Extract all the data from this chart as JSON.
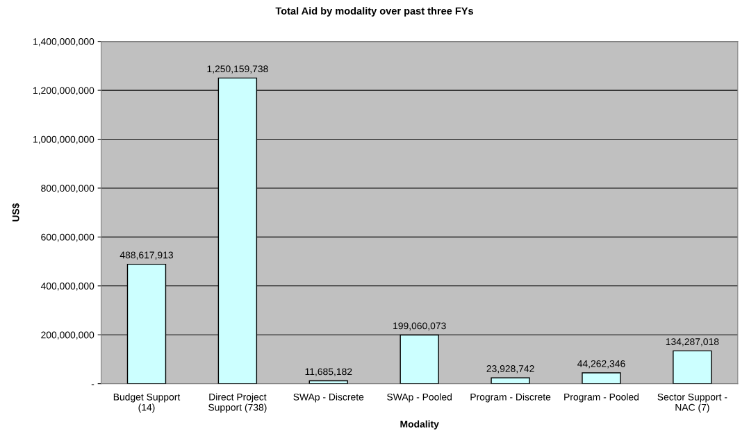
{
  "chart_data": {
    "type": "bar",
    "title": "Total Aid by modality over past three FYs",
    "xlabel": "Modality",
    "ylabel": "US$",
    "categories": [
      "Budget Support\n(14)",
      "Direct Project\nSupport (738)",
      "SWAp - Discrete",
      "SWAp - Pooled",
      "Program - Discrete",
      "Program - Pooled",
      "Sector Support -\nNAC (7)"
    ],
    "values": [
      488617913,
      1250159738,
      11685182,
      199060073,
      23928742,
      44262346,
      134287018
    ],
    "value_labels": [
      "488,617,913",
      "1,250,159,738",
      "11,685,182",
      "199,060,073",
      "23,928,742",
      "44,262,346",
      "134,287,018"
    ],
    "color": "#ccffff",
    "ylim": [
      0,
      1400000000
    ],
    "yticks": [
      {
        "value": 0,
        "label": "-"
      },
      {
        "value": 200000000,
        "label": "200,000,000"
      },
      {
        "value": 400000000,
        "label": "400,000,000"
      },
      {
        "value": 600000000,
        "label": "600,000,000"
      },
      {
        "value": 800000000,
        "label": "800,000,000"
      },
      {
        "value": 1000000000,
        "label": "1,000,000,000"
      },
      {
        "value": 1200000000,
        "label": "1,200,000,000"
      },
      {
        "value": 1400000000,
        "label": "1,400,000,000"
      }
    ],
    "grid": "y"
  }
}
